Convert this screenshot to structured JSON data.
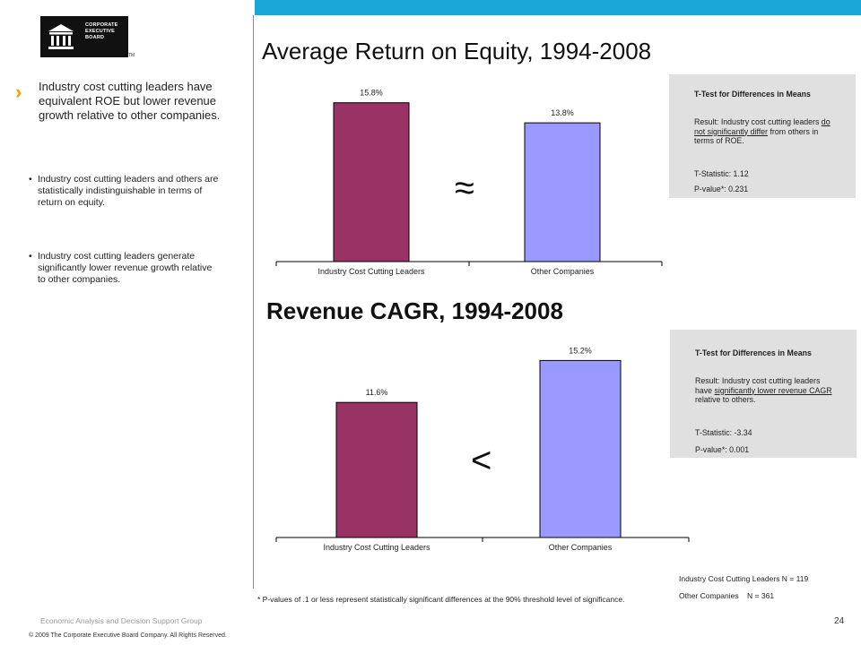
{
  "logo": {
    "lines": "CORPORATE\nEXECUTIVE\nBOARD",
    "tm": "TM"
  },
  "left": {
    "headline": "Industry cost cutting leaders have equivalent ROE but lower revenue growth relative to other companies.",
    "bullets": [
      "Industry cost cutting leaders and others are statistically indistinguishable in terms of return on equity.",
      "Industry cost cutting leaders generate significantly lower revenue growth relative to other companies."
    ]
  },
  "chart_data": [
    {
      "type": "bar",
      "title": "Average Return on Equity, 1994-2008",
      "categories": [
        "Industry Cost Cutting Leaders",
        "Other Companies"
      ],
      "values": [
        15.8,
        13.8
      ],
      "labels": [
        "15.8%",
        "13.8%"
      ],
      "colors": [
        "#993366",
        "#9999ff"
      ],
      "ylim": [
        0,
        18
      ],
      "relation": "≈",
      "ttest": {
        "title": "T-Test for Differences in Means",
        "result_prefix": "Result: Industry cost cutting leaders ",
        "result_emph": "do not significantly differ",
        "result_suffix": " from others in terms of ROE.",
        "tstat": "T-Statistic: 1.12",
        "pvalue": "P-value*: 0.231"
      }
    },
    {
      "type": "bar",
      "title": "Revenue CAGR, 1994-2008",
      "categories": [
        "Industry Cost Cutting Leaders",
        "Other Companies"
      ],
      "values": [
        11.6,
        15.2
      ],
      "labels": [
        "11.6%",
        "15.2%"
      ],
      "colors": [
        "#993366",
        "#9999ff"
      ],
      "ylim": [
        0,
        17
      ],
      "relation": "<",
      "ttest": {
        "title": "T-Test for Differences in Means",
        "result_prefix": "Result: Industry cost cutting leaders have ",
        "result_emph": "significantly lower revenue CAGR",
        "result_suffix": " relative to others.",
        "tstat": "T-Statistic: -3.34",
        "pvalue": "P-value*: 0.001"
      }
    }
  ],
  "sample": {
    "line1": "Industry Cost Cutting Leaders N = 119",
    "line2": "Other Companies    N = 361"
  },
  "footer": {
    "note": "* P-values of .1 or less represent statistically significant differences at the 90% threshold level of significance.",
    "group": "Economic Analysis and Decision Support Group",
    "copyright": "© 2009 The Corporate Executive Board Company. All Rights Reserved.",
    "page": "24"
  }
}
